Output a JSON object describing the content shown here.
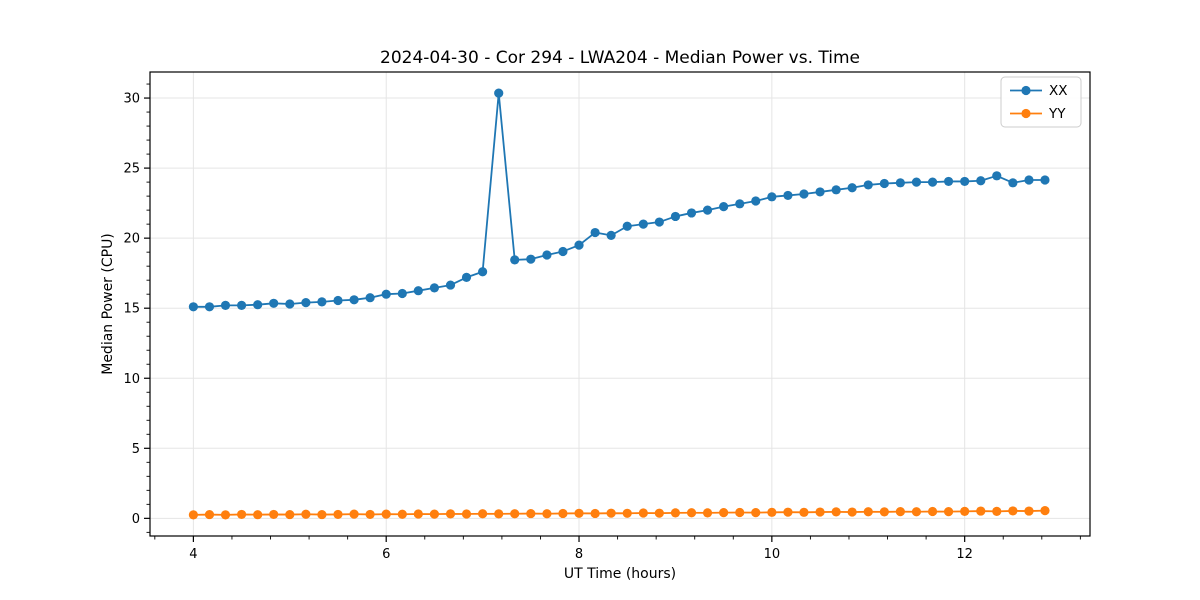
{
  "window": {
    "background": "#ffffff"
  },
  "chart_data": {
    "type": "line",
    "title": "2024-04-30 - Cor 294 - LWA204 - Median Power vs. Time",
    "xlabel": "UT Time (hours)",
    "ylabel": "Median Power (CPU)",
    "xlim": [
      3.55,
      13.3
    ],
    "ylim": [
      -1.26,
      31.86
    ],
    "x_ticks": [
      4,
      6,
      8,
      10,
      12
    ],
    "y_ticks": [
      0,
      5,
      10,
      15,
      20,
      25,
      30
    ],
    "x_minor_step": 0.4,
    "y_minor_step": 1,
    "grid": true,
    "grid_color": "#e5e5e5",
    "spine_color": "#000000",
    "legend_position": "upper right",
    "x": [
      4.0,
      4.167,
      4.333,
      4.5,
      4.667,
      4.833,
      5.0,
      5.167,
      5.333,
      5.5,
      5.667,
      5.833,
      6.0,
      6.167,
      6.333,
      6.5,
      6.667,
      6.833,
      7.0,
      7.167,
      7.333,
      7.5,
      7.667,
      7.833,
      8.0,
      8.167,
      8.333,
      8.5,
      8.667,
      8.833,
      9.0,
      9.167,
      9.333,
      9.5,
      9.667,
      9.833,
      10.0,
      10.167,
      10.333,
      10.5,
      10.667,
      10.833,
      11.0,
      11.167,
      11.333,
      11.5,
      11.667,
      11.833,
      12.0,
      12.167,
      12.333,
      12.5,
      12.667,
      12.833
    ],
    "series": [
      {
        "name": "XX",
        "color": "#1f77b4",
        "values": [
          15.1,
          15.1,
          15.2,
          15.2,
          15.25,
          15.35,
          15.3,
          15.4,
          15.45,
          15.55,
          15.6,
          15.75,
          16.0,
          16.05,
          16.25,
          16.45,
          16.65,
          17.2,
          17.6,
          30.35,
          18.45,
          18.5,
          18.8,
          19.05,
          19.5,
          20.4,
          20.2,
          20.85,
          21.0,
          21.15,
          21.55,
          21.8,
          22.0,
          22.25,
          22.45,
          22.65,
          22.95,
          23.05,
          23.15,
          23.3,
          23.45,
          23.6,
          23.8,
          23.9,
          23.95,
          24.0,
          24.0,
          24.05,
          24.05,
          24.1,
          24.45,
          23.95,
          24.15,
          24.15
        ]
      },
      {
        "name": "YY",
        "color": "#ff7f0e",
        "values": [
          0.25,
          0.27,
          0.25,
          0.28,
          0.26,
          0.28,
          0.27,
          0.29,
          0.27,
          0.28,
          0.3,
          0.28,
          0.3,
          0.29,
          0.31,
          0.3,
          0.32,
          0.31,
          0.33,
          0.32,
          0.33,
          0.34,
          0.33,
          0.35,
          0.36,
          0.35,
          0.37,
          0.36,
          0.38,
          0.37,
          0.39,
          0.4,
          0.39,
          0.41,
          0.42,
          0.41,
          0.43,
          0.44,
          0.43,
          0.45,
          0.46,
          0.45,
          0.47,
          0.46,
          0.48,
          0.47,
          0.49,
          0.48,
          0.5,
          0.52,
          0.5,
          0.53,
          0.52,
          0.55
        ]
      }
    ]
  }
}
